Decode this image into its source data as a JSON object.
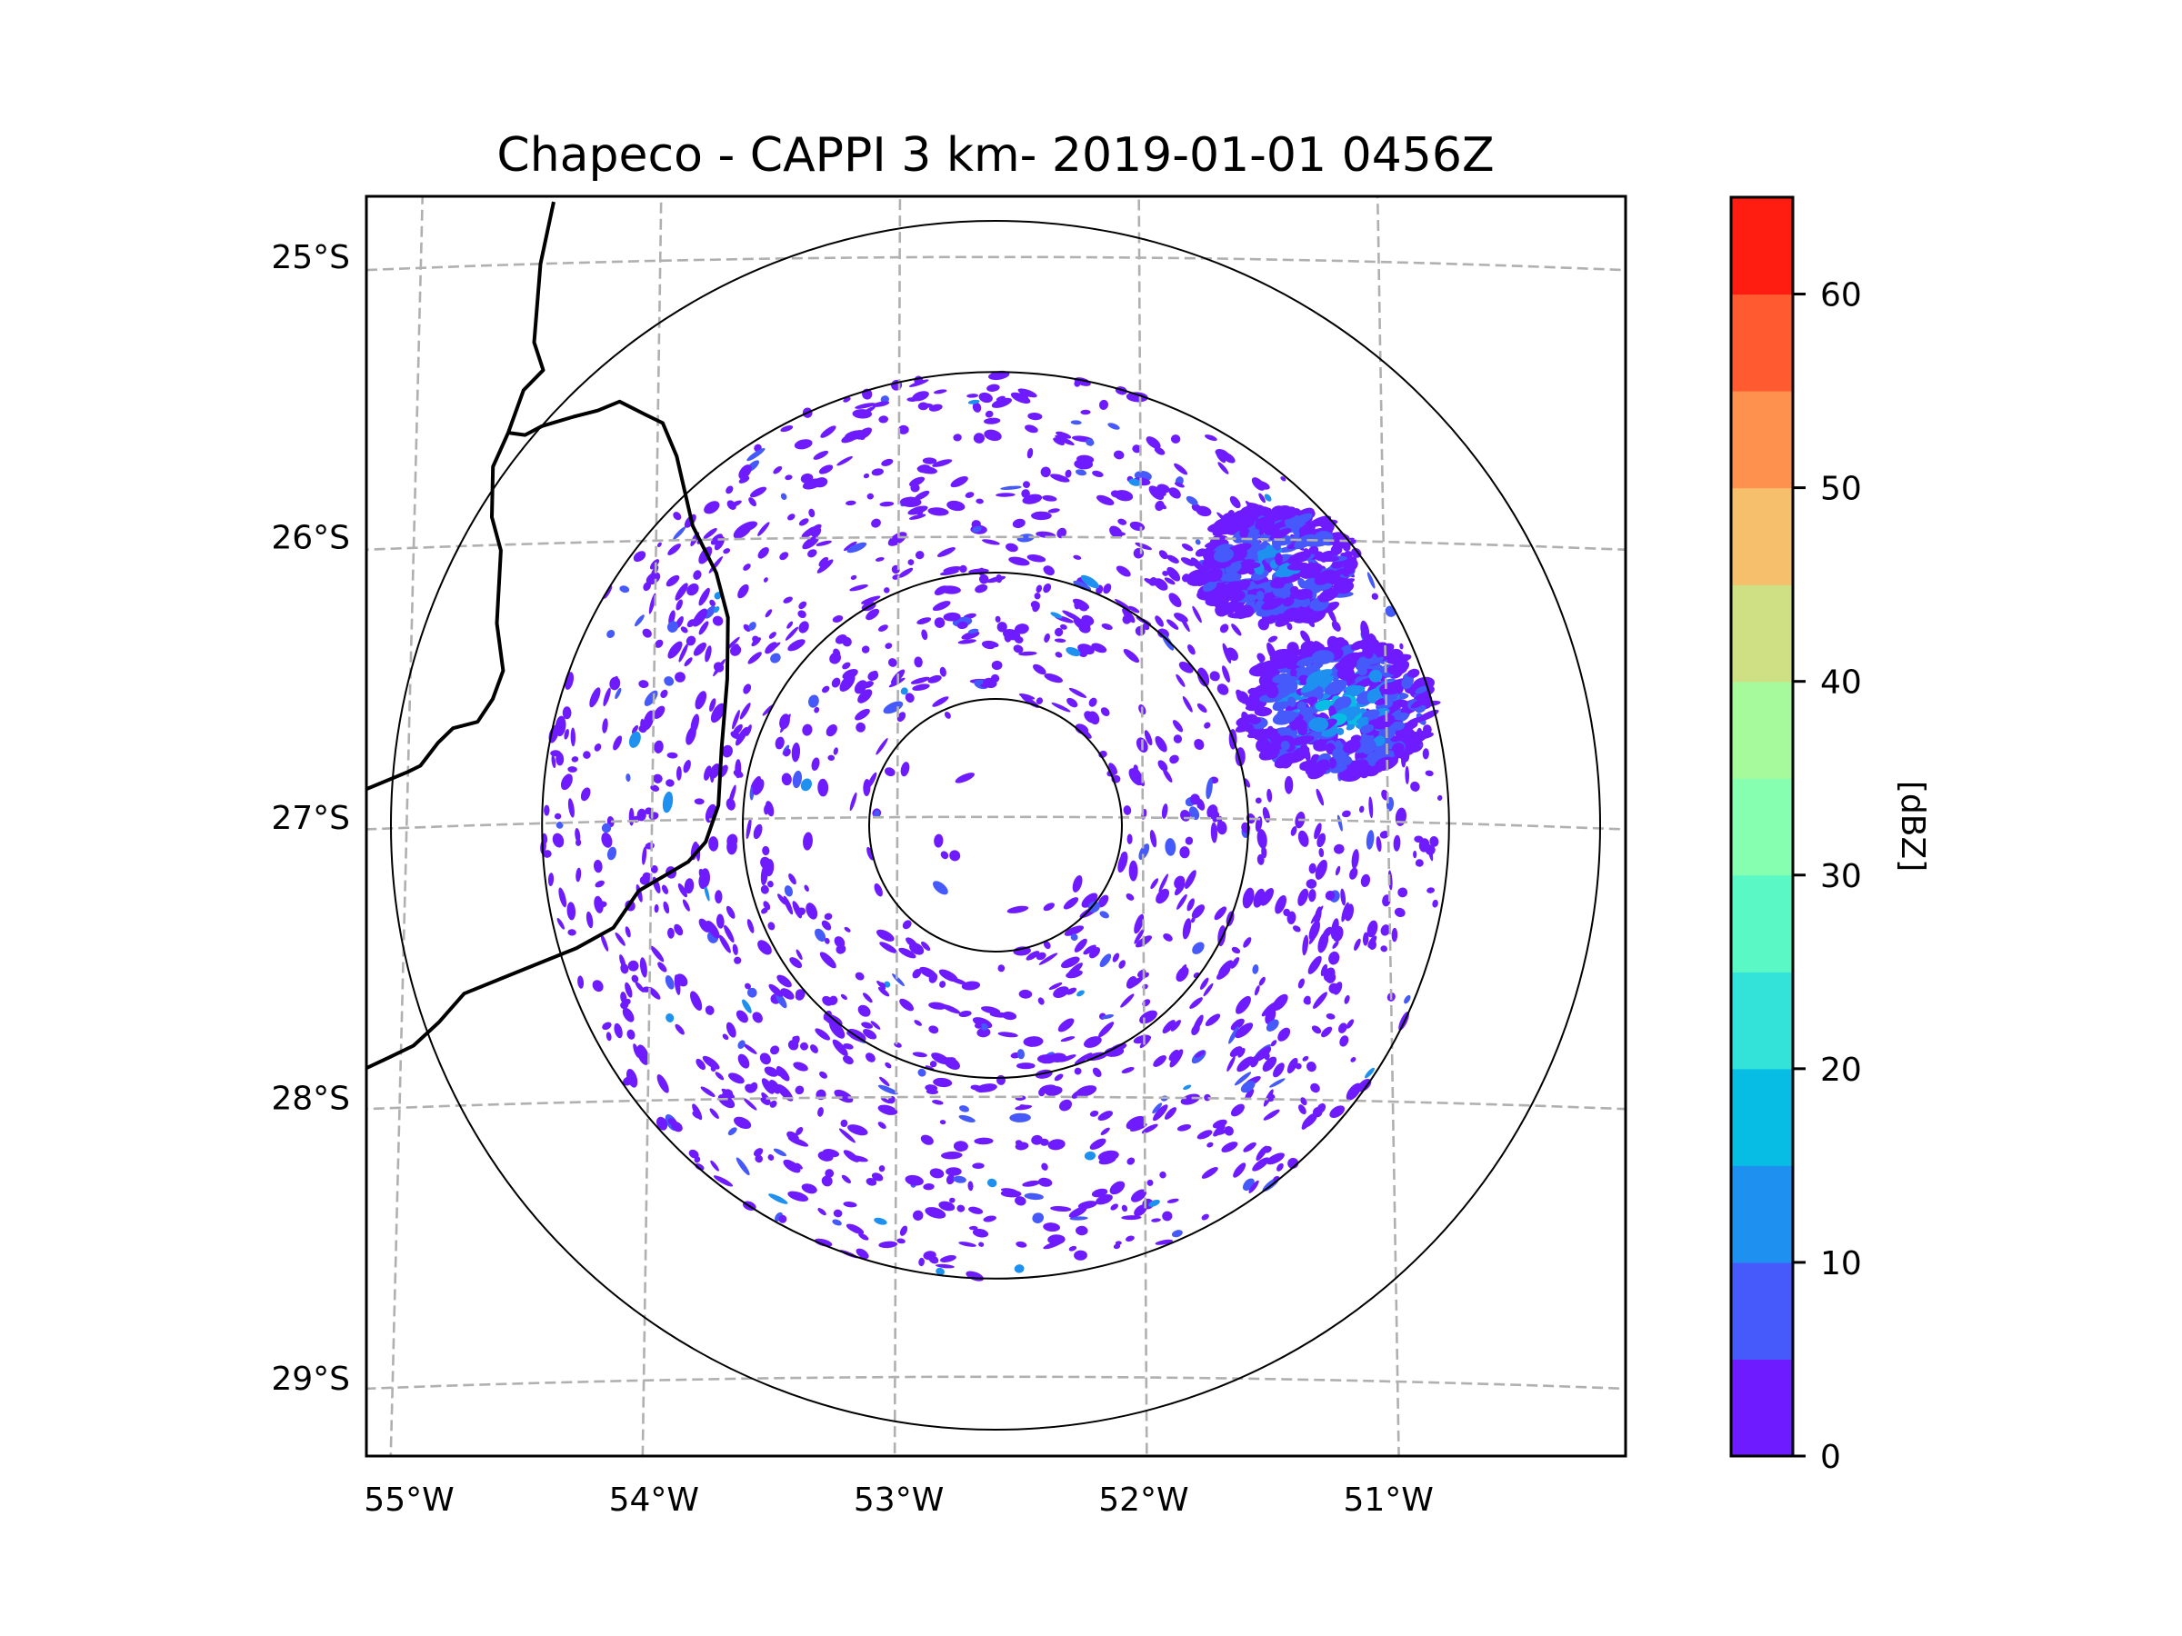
{
  "chart_data": {
    "type": "heatmap",
    "subtype": "radar-ppi-map",
    "title": "Chapeco - CAPPI 3 km- 2019-01-01 0456Z",
    "radar_site": "Chapeco",
    "product": "CAPPI 3 km",
    "datetime": "2019-01-01 0456Z",
    "radar_center": {
      "lon": -52.6,
      "lat": -27.03
    },
    "x_axis": {
      "label": "",
      "ticks": [
        -55,
        -54,
        -53,
        -52,
        -51
      ],
      "tick_labels": [
        "55°W",
        "54°W",
        "53°W",
        "52°W",
        "51°W"
      ],
      "range": [
        -55.18,
        -50.08
      ]
    },
    "y_axis": {
      "label": "",
      "ticks": [
        -25,
        -26,
        -27,
        -28,
        -29
      ],
      "tick_labels": [
        "25°S",
        "26°S",
        "27°S",
        "28°S",
        "29°S"
      ],
      "range": [
        -29.28,
        -24.78
      ]
    },
    "grid": true,
    "range_rings_relative": [
      0.209,
      0.418,
      0.75,
      1.0
    ],
    "colorbar": {
      "label": "[dBZ]",
      "placement": "right",
      "vmin": 0,
      "vmax": 65,
      "ticks": [
        0,
        10,
        20,
        30,
        40,
        50,
        60
      ],
      "tick_labels": [
        "0",
        "10",
        "20",
        "30",
        "40",
        "50",
        "60"
      ],
      "bins": [
        {
          "from": 0,
          "to": 5,
          "color": "#6e1cff"
        },
        {
          "from": 5,
          "to": 10,
          "color": "#4659fb"
        },
        {
          "from": 10,
          "to": 15,
          "color": "#1e90ef"
        },
        {
          "from": 15,
          "to": 20,
          "color": "#07bde4"
        },
        {
          "from": 20,
          "to": 25,
          "color": "#33e2d9"
        },
        {
          "from": 25,
          "to": 30,
          "color": "#5af8c5"
        },
        {
          "from": 30,
          "to": 35,
          "color": "#86ffb1"
        },
        {
          "from": 35,
          "to": 40,
          "color": "#a6fa9b"
        },
        {
          "from": 40,
          "to": 45,
          "color": "#cfdf83"
        },
        {
          "from": 45,
          "to": 50,
          "color": "#f5bf6b"
        },
        {
          "from": 50,
          "to": 55,
          "color": "#ff914f"
        },
        {
          "from": 55,
          "to": 60,
          "color": "#ff5a30"
        },
        {
          "from": 60,
          "to": 65,
          "color": "#ff1d12"
        }
      ]
    },
    "echo_summary": {
      "dominant_range_dbz": [
        0,
        10
      ],
      "max_observed_dbz_approx": 25,
      "clusters": [
        {
          "name": "northeast-band",
          "lon": -51.2,
          "lat": -26.6,
          "spread": 0.35,
          "density": 1.0,
          "max_dbz": 22
        },
        {
          "name": "northeast-upper",
          "lon": -51.45,
          "lat": -26.1,
          "spread": 0.3,
          "density": 0.8,
          "max_dbz": 15
        },
        {
          "name": "general-clutter-ring",
          "lon": -52.6,
          "lat": -27.03,
          "spread": 1.9,
          "density": 0.45,
          "max_dbz": 12
        }
      ]
    },
    "boundaries": [
      {
        "name": "argentina-paraguay-brazil-border-north",
        "points_lonlat": [
          [
            -54.45,
            -24.78
          ],
          [
            -54.5,
            -25.0
          ],
          [
            -54.52,
            -25.28
          ],
          [
            -54.48,
            -25.38
          ],
          [
            -54.56,
            -25.45
          ],
          [
            -54.62,
            -25.6
          ],
          [
            -54.68,
            -25.72
          ],
          [
            -54.68,
            -25.9
          ],
          [
            -54.64,
            -26.02
          ],
          [
            -54.65,
            -26.28
          ],
          [
            -54.62,
            -26.45
          ],
          [
            -54.66,
            -26.55
          ],
          [
            -54.72,
            -26.63
          ],
          [
            -54.82,
            -26.65
          ],
          [
            -54.88,
            -26.7
          ],
          [
            -54.95,
            -26.78
          ],
          [
            -55.0,
            -26.8
          ],
          [
            -55.18,
            -26.86
          ]
        ]
      },
      {
        "name": "misiones-border-loop",
        "points_lonlat": [
          [
            -54.62,
            -25.6
          ],
          [
            -54.55,
            -25.61
          ],
          [
            -54.48,
            -25.58
          ],
          [
            -54.35,
            -25.55
          ],
          [
            -54.25,
            -25.53
          ],
          [
            -54.16,
            -25.5
          ],
          [
            -54.05,
            -25.55
          ],
          [
            -53.98,
            -25.58
          ],
          [
            -53.92,
            -25.7
          ],
          [
            -53.85,
            -25.95
          ],
          [
            -53.75,
            -26.12
          ],
          [
            -53.7,
            -26.28
          ],
          [
            -53.7,
            -26.5
          ],
          [
            -53.72,
            -26.75
          ],
          [
            -53.73,
            -26.95
          ],
          [
            -53.78,
            -27.08
          ],
          [
            -53.85,
            -27.15
          ],
          [
            -53.95,
            -27.2
          ],
          [
            -54.05,
            -27.25
          ],
          [
            -54.15,
            -27.38
          ],
          [
            -54.3,
            -27.45
          ],
          [
            -54.45,
            -27.5
          ],
          [
            -54.6,
            -27.55
          ],
          [
            -54.75,
            -27.6
          ],
          [
            -54.85,
            -27.7
          ],
          [
            -54.95,
            -27.78
          ],
          [
            -55.05,
            -27.82
          ],
          [
            -55.18,
            -27.87
          ]
        ]
      }
    ]
  }
}
